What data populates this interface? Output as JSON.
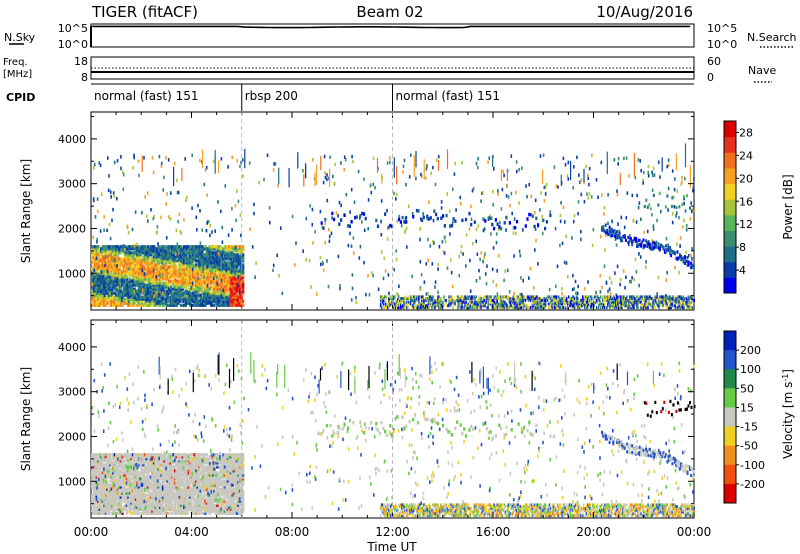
{
  "header": {
    "title": "TIGER (fitACF)",
    "beam": "Beam 02",
    "date": "10/Aug/2016"
  },
  "left_labels": {
    "nsky": "N.Sky",
    "freq_line1": "Freq.",
    "freq_line2": "[MHz]",
    "cpid": "CPID"
  },
  "right_labels": {
    "nsearch": "N.Search",
    "nave": "Nave"
  },
  "nsky_panel": {
    "left_ticks": [
      "10^5",
      "10^0"
    ],
    "right_ticks": [
      "10^5",
      "10^0"
    ]
  },
  "freq_panel": {
    "left_ticks": [
      "18",
      "8"
    ],
    "right_ticks": [
      "60",
      "0"
    ]
  },
  "cpid_segments": [
    {
      "label": "normal (fast) 151",
      "start_hour": 0,
      "end_hour": 6
    },
    {
      "label": "rbsp 200",
      "start_hour": 6,
      "end_hour": 12
    },
    {
      "label": "normal (fast) 151",
      "start_hour": 12,
      "end_hour": 24
    }
  ],
  "chart_data": [
    {
      "type": "heatmap",
      "name": "power",
      "xlabel": "Time UT",
      "ylabel": "Slant Range [km]",
      "xlim": [
        0,
        24
      ],
      "ylim": [
        180,
        4600
      ],
      "x_ticks": [
        "00:00",
        "04:00",
        "08:00",
        "12:00",
        "16:00",
        "20:00",
        "00:00"
      ],
      "y_ticks": [
        1000,
        2000,
        3000,
        4000
      ],
      "colorbar": {
        "label": "Power [dB]",
        "ticks": [
          4,
          8,
          12,
          16,
          20,
          24,
          28
        ],
        "range": [
          0,
          30
        ],
        "colors": [
          "#0000ee",
          "#0b3da8",
          "#1c6e8a",
          "#3b8e70",
          "#5bb35a",
          "#a8c43a",
          "#f0d020",
          "#f5a020",
          "#f07020",
          "#e83020",
          "#dd0000"
        ]
      }
    },
    {
      "type": "heatmap",
      "name": "velocity",
      "xlabel": "Time UT",
      "ylabel": "Slant Range [km]",
      "xlim": [
        0,
        24
      ],
      "ylim": [
        180,
        4600
      ],
      "x_ticks": [
        "00:00",
        "04:00",
        "08:00",
        "12:00",
        "16:00",
        "20:00",
        "00:00"
      ],
      "y_ticks": [
        1000,
        2000,
        3000,
        4000
      ],
      "colorbar": {
        "label_main": "Velocity [m s",
        "label_sup": "-1",
        "label_end": "]",
        "tick_labels": [
          "200",
          "100",
          "50",
          "15",
          "-15",
          "-50",
          "-100",
          "-200"
        ],
        "colors": [
          "#0022bb",
          "#2255cc",
          "#22884a",
          "#66cc44",
          "#c8c8c0",
          "#f0d020",
          "#f09020",
          "#f05010",
          "#dd0000"
        ]
      }
    }
  ]
}
